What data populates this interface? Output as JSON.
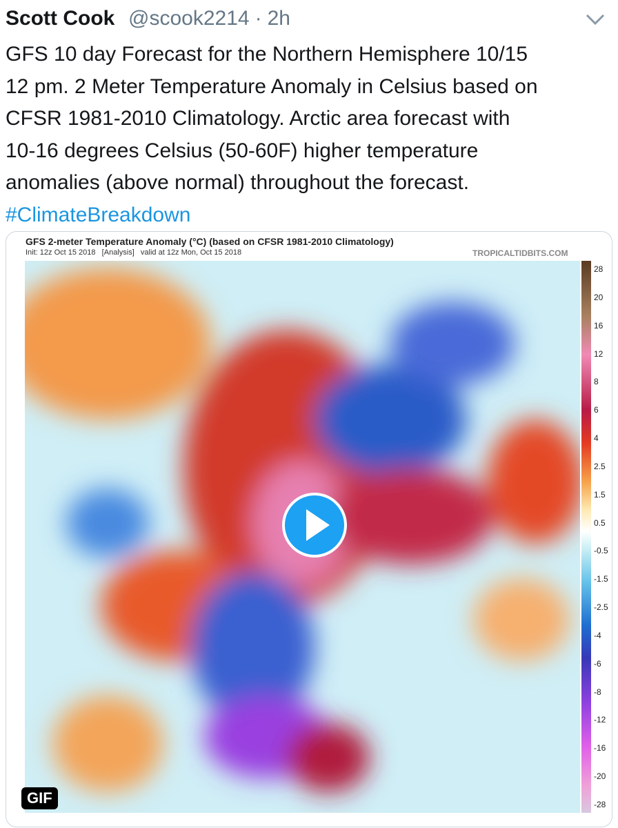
{
  "tweet": {
    "author_name": "Scott Cook",
    "handle": "@scook2214",
    "separator": "·",
    "time": "2h",
    "text_lines": [
      "GFS 10 day Forecast for the Northern Hemisphere 10/15",
      "12 pm. 2 Meter Temperature Anomaly in Celsius based on",
      "CFSR 1981-2010 Climatology. Arctic area forecast with",
      "10-16 degrees Celsius (50-60F) higher temperature",
      "anomalies (above normal) throughout the forecast."
    ],
    "hashtag": "#ClimateBreakdown"
  },
  "media": {
    "title": "GFS 2-meter Temperature Anomaly (°C) (based on CFSR 1981-2010 Climatology)",
    "subtitle": "Init: 12z Oct 15 2018   [Analysis]   valid at 12z Mon, Oct 15 2018",
    "source": "TROPICALTIDBITS.COM",
    "colorbar_labels": [
      28,
      20,
      16,
      12,
      8,
      6,
      4,
      2.5,
      1.5,
      0.5,
      -0.5,
      -1.5,
      -2.5,
      -4,
      -6,
      -8,
      -12,
      -16,
      -20,
      -28
    ],
    "badge": "GIF"
  }
}
